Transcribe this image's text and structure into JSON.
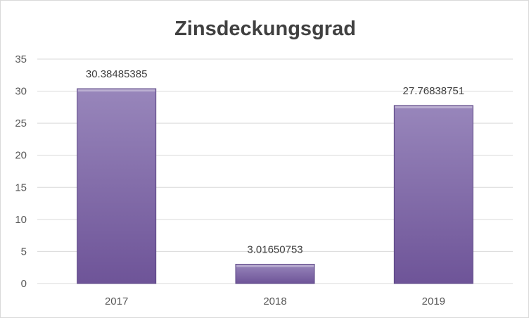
{
  "chart_data": {
    "type": "bar",
    "title": "Zinsdeckungsgrad",
    "xlabel": "",
    "ylabel": "",
    "categories": [
      "2017",
      "2018",
      "2019"
    ],
    "values": [
      30.38485385,
      3.01650753,
      27.76838751
    ],
    "data_labels": [
      "30.38485385",
      "3.01650753",
      "27.76838751"
    ],
    "ylim": [
      0,
      35
    ],
    "yticks": [
      "0",
      "5",
      "10",
      "15",
      "20",
      "25",
      "30",
      "35"
    ],
    "grid": true,
    "legend": "none",
    "colors": {
      "bar_top": "#9886bb",
      "bar_bottom": "#6e5498",
      "bar_edge": "#5b4684",
      "grid": "#d9d9d9"
    }
  }
}
